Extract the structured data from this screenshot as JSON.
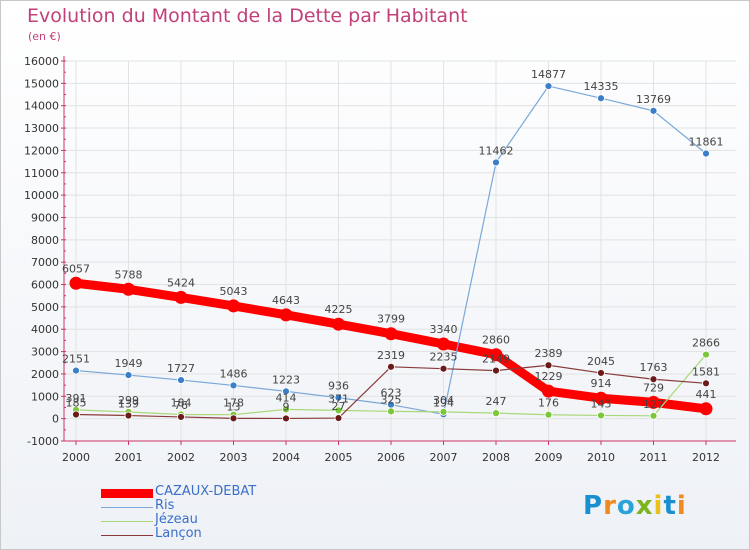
{
  "title": "Evolution du Montant de la Dette par Habitant",
  "subtitle": "(en €)",
  "logo": {
    "letters": [
      "P",
      "r",
      "o",
      "x",
      "i",
      "t",
      "i"
    ],
    "colors": [
      "#1a8fd0",
      "#f08a1c",
      "#2aa3d8",
      "#7ab51d",
      "#e8c21a",
      "#1a8fd0",
      "#f08a1c"
    ]
  },
  "chart_data": {
    "type": "line",
    "x": [
      "2000",
      "2001",
      "2002",
      "2003",
      "2004",
      "2005",
      "2006",
      "2007",
      "2008",
      "2009",
      "2010",
      "2011",
      "2012"
    ],
    "ylim": [
      -1000,
      16000
    ],
    "yticks": [
      -1000,
      0,
      1000,
      2000,
      3000,
      4000,
      5000,
      6000,
      7000,
      8000,
      9000,
      10000,
      11000,
      12000,
      13000,
      14000,
      15000,
      16000
    ],
    "grid": true,
    "legend": "bottom-left",
    "series": [
      {
        "name": "CAZAUX-DEBAT",
        "color": "#ff0000",
        "marker": "#ff0000",
        "width": 9,
        "r": 6.5,
        "values": [
          6057,
          5788,
          5424,
          5043,
          4643,
          4225,
          3799,
          3340,
          2860,
          1229,
          914,
          729,
          441
        ],
        "labels": [
          "6057",
          "5788",
          "5424",
          "5043",
          "4643",
          "4225",
          "3799",
          "3340",
          "2860",
          "1229",
          "914",
          "729",
          "441"
        ]
      },
      {
        "name": "Ris",
        "color": "#7aa8d8",
        "marker": "#3a7fc8",
        "width": 1.2,
        "r": 3.5,
        "values": [
          2151,
          1949,
          1727,
          1486,
          1223,
          936,
          623,
          194,
          11462,
          14877,
          14335,
          13769,
          11861
        ],
        "labels": [
          "2151",
          "1949",
          "1727",
          "1486",
          "1223",
          "936",
          "623",
          "194",
          "11462",
          "14877",
          "14335",
          "13769",
          "11861"
        ]
      },
      {
        "name": "Jézeau",
        "color": "#a8d878",
        "marker": "#7ac83a",
        "width": 1.2,
        "r": 3.5,
        "values": [
          391,
          299,
          184,
          178,
          414,
          371,
          325,
          304,
          247,
          176,
          143,
          127,
          2866
        ],
        "labels": [
          "391",
          "299",
          "184",
          "178",
          "414",
          "371",
          "325",
          "304",
          "247",
          "176",
          "143",
          "127",
          "2866"
        ]
      },
      {
        "name": "Lançon",
        "color": "#8a3a3a",
        "marker": "#6a1a1a",
        "width": 1.2,
        "r": 3.5,
        "values": [
          185,
          139,
          76,
          13,
          9,
          27,
          2319,
          2235,
          2149,
          2389,
          2045,
          1763,
          1581
        ],
        "labels": [
          "185",
          "139",
          "76",
          "13",
          "9",
          "27",
          "2319",
          "2235",
          "2149",
          "2389",
          "2045",
          "1763",
          "1581"
        ]
      }
    ]
  }
}
